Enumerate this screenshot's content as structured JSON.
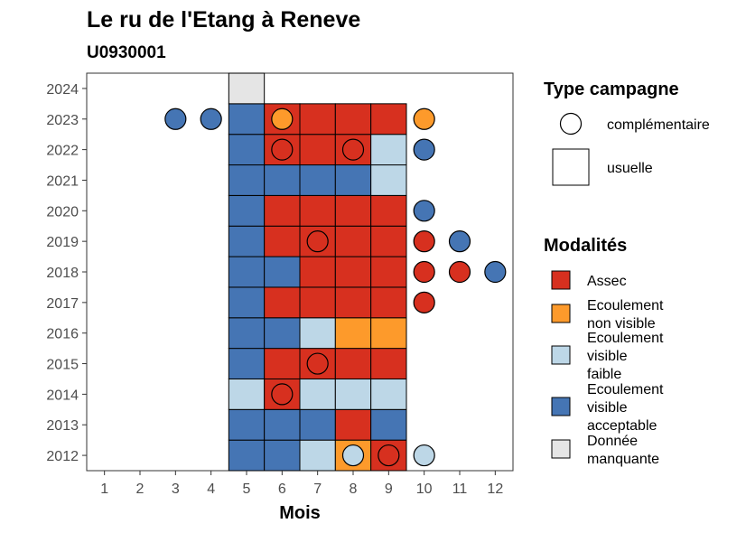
{
  "chart_data": {
    "type": "heatmap",
    "title": "Le ru de l'Etang à Reneve",
    "subtitle": "U0930001",
    "xlabel": "Mois",
    "ylabel": "",
    "x_ticks": [
      "1",
      "2",
      "3",
      "4",
      "5",
      "6",
      "7",
      "8",
      "9",
      "10",
      "11",
      "12"
    ],
    "y_ticks": [
      "2012",
      "2013",
      "2014",
      "2015",
      "2016",
      "2017",
      "2018",
      "2019",
      "2020",
      "2021",
      "2022",
      "2023",
      "2024"
    ],
    "xlim": [
      0.5,
      12.5
    ],
    "ylim": [
      2011.5,
      2024.5
    ],
    "grid": false,
    "legend_position": "right",
    "legend_type": {
      "title": "Type campagne",
      "items": [
        {
          "key": "complementaire",
          "label": "complémentaire",
          "shape": "circle"
        },
        {
          "key": "usuelle",
          "label": "usuelle",
          "shape": "square"
        }
      ]
    },
    "legend_modalites": {
      "title": "Modalités",
      "items": [
        {
          "key": "assec",
          "lines": [
            "Assec"
          ],
          "color": "#d7301f"
        },
        {
          "key": "ecoulement_non_visible",
          "lines": [
            "Ecoulement",
            "non visible"
          ],
          "color": "#fd9a2b"
        },
        {
          "key": "ecoulement_visible_faible",
          "lines": [
            "Ecoulement",
            "visible",
            "faible"
          ],
          "color": "#bdd7e7"
        },
        {
          "key": "ecoulement_visible_acceptable",
          "lines": [
            "Ecoulement",
            "visible",
            "acceptable"
          ],
          "color": "#4575b4"
        },
        {
          "key": "donnee_manquante",
          "lines": [
            "Donnée",
            "manquante"
          ],
          "color": "#e5e5e5"
        }
      ]
    },
    "usuelle": [
      {
        "year": 2012,
        "month": 5,
        "modalite": "ecoulement_visible_acceptable"
      },
      {
        "year": 2012,
        "month": 6,
        "modalite": "ecoulement_visible_acceptable"
      },
      {
        "year": 2012,
        "month": 7,
        "modalite": "ecoulement_visible_faible"
      },
      {
        "year": 2012,
        "month": 8,
        "modalite": "ecoulement_non_visible"
      },
      {
        "year": 2012,
        "month": 9,
        "modalite": "assec"
      },
      {
        "year": 2013,
        "month": 5,
        "modalite": "ecoulement_visible_acceptable"
      },
      {
        "year": 2013,
        "month": 6,
        "modalite": "ecoulement_visible_acceptable"
      },
      {
        "year": 2013,
        "month": 7,
        "modalite": "ecoulement_visible_acceptable"
      },
      {
        "year": 2013,
        "month": 8,
        "modalite": "assec"
      },
      {
        "year": 2013,
        "month": 9,
        "modalite": "ecoulement_visible_acceptable"
      },
      {
        "year": 2014,
        "month": 5,
        "modalite": "ecoulement_visible_faible"
      },
      {
        "year": 2014,
        "month": 6,
        "modalite": "assec"
      },
      {
        "year": 2014,
        "month": 7,
        "modalite": "ecoulement_visible_faible"
      },
      {
        "year": 2014,
        "month": 8,
        "modalite": "ecoulement_visible_faible"
      },
      {
        "year": 2014,
        "month": 9,
        "modalite": "ecoulement_visible_faible"
      },
      {
        "year": 2015,
        "month": 5,
        "modalite": "ecoulement_visible_acceptable"
      },
      {
        "year": 2015,
        "month": 6,
        "modalite": "assec"
      },
      {
        "year": 2015,
        "month": 7,
        "modalite": "assec"
      },
      {
        "year": 2015,
        "month": 8,
        "modalite": "assec"
      },
      {
        "year": 2015,
        "month": 9,
        "modalite": "assec"
      },
      {
        "year": 2016,
        "month": 5,
        "modalite": "ecoulement_visible_acceptable"
      },
      {
        "year": 2016,
        "month": 6,
        "modalite": "ecoulement_visible_acceptable"
      },
      {
        "year": 2016,
        "month": 7,
        "modalite": "ecoulement_visible_faible"
      },
      {
        "year": 2016,
        "month": 8,
        "modalite": "ecoulement_non_visible"
      },
      {
        "year": 2016,
        "month": 9,
        "modalite": "ecoulement_non_visible"
      },
      {
        "year": 2017,
        "month": 5,
        "modalite": "ecoulement_visible_acceptable"
      },
      {
        "year": 2017,
        "month": 6,
        "modalite": "assec"
      },
      {
        "year": 2017,
        "month": 7,
        "modalite": "assec"
      },
      {
        "year": 2017,
        "month": 8,
        "modalite": "assec"
      },
      {
        "year": 2017,
        "month": 9,
        "modalite": "assec"
      },
      {
        "year": 2018,
        "month": 5,
        "modalite": "ecoulement_visible_acceptable"
      },
      {
        "year": 2018,
        "month": 6,
        "modalite": "ecoulement_visible_acceptable"
      },
      {
        "year": 2018,
        "month": 7,
        "modalite": "assec"
      },
      {
        "year": 2018,
        "month": 8,
        "modalite": "assec"
      },
      {
        "year": 2018,
        "month": 9,
        "modalite": "assec"
      },
      {
        "year": 2019,
        "month": 5,
        "modalite": "ecoulement_visible_acceptable"
      },
      {
        "year": 2019,
        "month": 6,
        "modalite": "assec"
      },
      {
        "year": 2019,
        "month": 7,
        "modalite": "assec"
      },
      {
        "year": 2019,
        "month": 8,
        "modalite": "assec"
      },
      {
        "year": 2019,
        "month": 9,
        "modalite": "assec"
      },
      {
        "year": 2020,
        "month": 5,
        "modalite": "ecoulement_visible_acceptable"
      },
      {
        "year": 2020,
        "month": 6,
        "modalite": "assec"
      },
      {
        "year": 2020,
        "month": 7,
        "modalite": "assec"
      },
      {
        "year": 2020,
        "month": 8,
        "modalite": "assec"
      },
      {
        "year": 2020,
        "month": 9,
        "modalite": "assec"
      },
      {
        "year": 2021,
        "month": 5,
        "modalite": "ecoulement_visible_acceptable"
      },
      {
        "year": 2021,
        "month": 6,
        "modalite": "ecoulement_visible_acceptable"
      },
      {
        "year": 2021,
        "month": 7,
        "modalite": "ecoulement_visible_acceptable"
      },
      {
        "year": 2021,
        "month": 8,
        "modalite": "ecoulement_visible_acceptable"
      },
      {
        "year": 2021,
        "month": 9,
        "modalite": "ecoulement_visible_faible"
      },
      {
        "year": 2022,
        "month": 5,
        "modalite": "ecoulement_visible_acceptable"
      },
      {
        "year": 2022,
        "month": 6,
        "modalite": "assec"
      },
      {
        "year": 2022,
        "month": 7,
        "modalite": "assec"
      },
      {
        "year": 2022,
        "month": 8,
        "modalite": "assec"
      },
      {
        "year": 2022,
        "month": 9,
        "modalite": "ecoulement_visible_faible"
      },
      {
        "year": 2023,
        "month": 5,
        "modalite": "ecoulement_visible_acceptable"
      },
      {
        "year": 2023,
        "month": 6,
        "modalite": "assec"
      },
      {
        "year": 2023,
        "month": 7,
        "modalite": "assec"
      },
      {
        "year": 2023,
        "month": 8,
        "modalite": "assec"
      },
      {
        "year": 2023,
        "month": 9,
        "modalite": "assec"
      },
      {
        "year": 2024,
        "month": 5,
        "modalite": "donnee_manquante"
      }
    ],
    "complementaire": [
      {
        "year": 2012,
        "month": 8,
        "modalite": "ecoulement_visible_faible"
      },
      {
        "year": 2012,
        "month": 9,
        "modalite": "assec"
      },
      {
        "year": 2012,
        "month": 10,
        "modalite": "ecoulement_visible_faible"
      },
      {
        "year": 2014,
        "month": 6,
        "modalite": "assec"
      },
      {
        "year": 2015,
        "month": 7,
        "modalite": "assec"
      },
      {
        "year": 2017,
        "month": 10,
        "modalite": "assec"
      },
      {
        "year": 2018,
        "month": 10,
        "modalite": "assec"
      },
      {
        "year": 2018,
        "month": 11,
        "modalite": "assec"
      },
      {
        "year": 2018,
        "month": 12,
        "modalite": "ecoulement_visible_acceptable"
      },
      {
        "year": 2019,
        "month": 7,
        "modalite": "assec"
      },
      {
        "year": 2019,
        "month": 10,
        "modalite": "assec"
      },
      {
        "year": 2019,
        "month": 11,
        "modalite": "ecoulement_visible_acceptable"
      },
      {
        "year": 2020,
        "month": 10,
        "modalite": "ecoulement_visible_acceptable"
      },
      {
        "year": 2022,
        "month": 6,
        "modalite": "assec"
      },
      {
        "year": 2022,
        "month": 8,
        "modalite": "assec"
      },
      {
        "year": 2022,
        "month": 10,
        "modalite": "ecoulement_visible_acceptable"
      },
      {
        "year": 2023,
        "month": 3,
        "modalite": "ecoulement_visible_acceptable"
      },
      {
        "year": 2023,
        "month": 4,
        "modalite": "ecoulement_visible_acceptable"
      },
      {
        "year": 2023,
        "month": 6,
        "modalite": "ecoulement_non_visible"
      },
      {
        "year": 2023,
        "month": 10,
        "modalite": "ecoulement_non_visible"
      }
    ]
  }
}
